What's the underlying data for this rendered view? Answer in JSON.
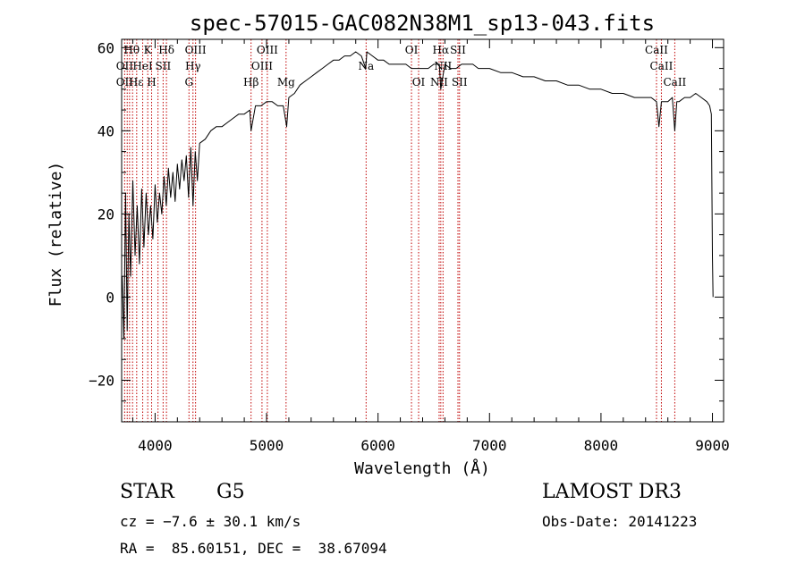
{
  "chart_data": {
    "type": "line",
    "title": "spec-57015-GAC082N38M1_sp13-043.fits",
    "xlabel": "Wavelength (Å)",
    "ylabel": "Flux (relative)",
    "xlim": [
      3700,
      9100
    ],
    "ylim": [
      -30,
      62
    ],
    "xticks": [
      4000,
      5000,
      6000,
      7000,
      8000,
      9000
    ],
    "yticks": [
      -20,
      0,
      20,
      40,
      60
    ],
    "series": [
      {
        "name": "flux",
        "x": [
          3705,
          3720,
          3735,
          3750,
          3765,
          3780,
          3800,
          3820,
          3840,
          3860,
          3880,
          3900,
          3920,
          3940,
          3960,
          3980,
          4000,
          4020,
          4040,
          4060,
          4080,
          4100,
          4120,
          4140,
          4160,
          4180,
          4200,
          4220,
          4240,
          4260,
          4280,
          4300,
          4320,
          4340,
          4360,
          4380,
          4400,
          4450,
          4500,
          4550,
          4600,
          4650,
          4700,
          4750,
          4800,
          4850,
          4861,
          4900,
          4950,
          5000,
          5050,
          5100,
          5150,
          5180,
          5200,
          5250,
          5300,
          5350,
          5400,
          5450,
          5500,
          5550,
          5600,
          5650,
          5700,
          5750,
          5800,
          5850,
          5890,
          5900,
          5950,
          6000,
          6050,
          6100,
          6150,
          6200,
          6250,
          6300,
          6350,
          6400,
          6450,
          6500,
          6550,
          6563,
          6600,
          6650,
          6700,
          6750,
          6800,
          6850,
          6900,
          6950,
          7000,
          7100,
          7200,
          7300,
          7400,
          7500,
          7600,
          7700,
          7800,
          7900,
          8000,
          8100,
          8200,
          8300,
          8400,
          8450,
          8498,
          8520,
          8542,
          8560,
          8600,
          8640,
          8662,
          8680,
          8700,
          8750,
          8800,
          8850,
          8900,
          8950,
          8975,
          8990,
          9000,
          9005
        ],
        "values": [
          5,
          -10,
          25,
          -8,
          20,
          5,
          28,
          10,
          22,
          8,
          26,
          12,
          25,
          15,
          22,
          14,
          27,
          18,
          25,
          20,
          29,
          22,
          31,
          24,
          30,
          23,
          32,
          26,
          33,
          28,
          34,
          24,
          36,
          22,
          35,
          28,
          37,
          38,
          40,
          41,
          41,
          42,
          43,
          44,
          44,
          45,
          40,
          46,
          46,
          47,
          47,
          46,
          46,
          41,
          48,
          49,
          51,
          52,
          53,
          54,
          55,
          56,
          57,
          57,
          58,
          58,
          59,
          58,
          55,
          59,
          58,
          57,
          57,
          56,
          56,
          56,
          56,
          55,
          55,
          55,
          55,
          56,
          56,
          50,
          56,
          55,
          55,
          56,
          56,
          56,
          55,
          55,
          55,
          54,
          54,
          53,
          53,
          52,
          52,
          51,
          51,
          50,
          50,
          49,
          49,
          48,
          48,
          48,
          47,
          41,
          47,
          47,
          47,
          48,
          40,
          47,
          47,
          48,
          48,
          49,
          48,
          47,
          46,
          44,
          10,
          0
        ]
      }
    ],
    "lines_label": "spectral lines",
    "line_positions": [
      3727,
      3750,
      3771,
      3798,
      3835,
      3889,
      3934,
      3969,
      4026,
      4072,
      4102,
      4304,
      4340,
      4363,
      4861,
      4959,
      5007,
      5175,
      5893,
      6300,
      6364,
      6548,
      6563,
      6583,
      6717,
      6731,
      8498,
      8542,
      8662
    ],
    "line_labels": [
      {
        "text": "Hθ",
        "x": 3790,
        "row": 1
      },
      {
        "text": "K",
        "x": 3934,
        "row": 1
      },
      {
        "text": "Hδ",
        "x": 4102,
        "row": 1
      },
      {
        "text": "OIII",
        "x": 4363,
        "row": 1
      },
      {
        "text": "OIII",
        "x": 5007,
        "row": 1
      },
      {
        "text": "OI",
        "x": 6300,
        "row": 1
      },
      {
        "text": "Hα",
        "x": 6563,
        "row": 1
      },
      {
        "text": "SII",
        "x": 6717,
        "row": 1
      },
      {
        "text": "CaII",
        "x": 8498,
        "row": 1
      },
      {
        "text": "OII",
        "x": 3727,
        "row": 2
      },
      {
        "text": "HeI",
        "x": 3889,
        "row": 2
      },
      {
        "text": "SII",
        "x": 4072,
        "row": 2
      },
      {
        "text": "Hγ",
        "x": 4340,
        "row": 2
      },
      {
        "text": "OIII",
        "x": 4959,
        "row": 2
      },
      {
        "text": "NII",
        "x": 6583,
        "row": 2
      },
      {
        "text": "Na",
        "x": 5893,
        "row": 2
      },
      {
        "text": "CaII",
        "x": 8542,
        "row": 2
      },
      {
        "text": "OII",
        "x": 3727,
        "row": 3
      },
      {
        "text": "Hε",
        "x": 3830,
        "row": 3
      },
      {
        "text": "H",
        "x": 3969,
        "row": 3
      },
      {
        "text": "G",
        "x": 4304,
        "row": 3
      },
      {
        "text": "Hβ",
        "x": 4861,
        "row": 3
      },
      {
        "text": "Mg",
        "x": 5175,
        "row": 3
      },
      {
        "text": "OI",
        "x": 6364,
        "row": 3
      },
      {
        "text": "NII",
        "x": 6548,
        "row": 3
      },
      {
        "text": "SII",
        "x": 6731,
        "row": 3
      },
      {
        "text": "CaII",
        "x": 8662,
        "row": 3
      }
    ]
  },
  "info": {
    "object_class": "STAR",
    "subclass": "G5",
    "survey": "LAMOST DR3",
    "redshift": "cz = −7.6 ± 30.1 km/s",
    "obs_date": "Obs-Date: 20141223",
    "coords": "RA =  85.60151, DEC =  38.67094"
  }
}
